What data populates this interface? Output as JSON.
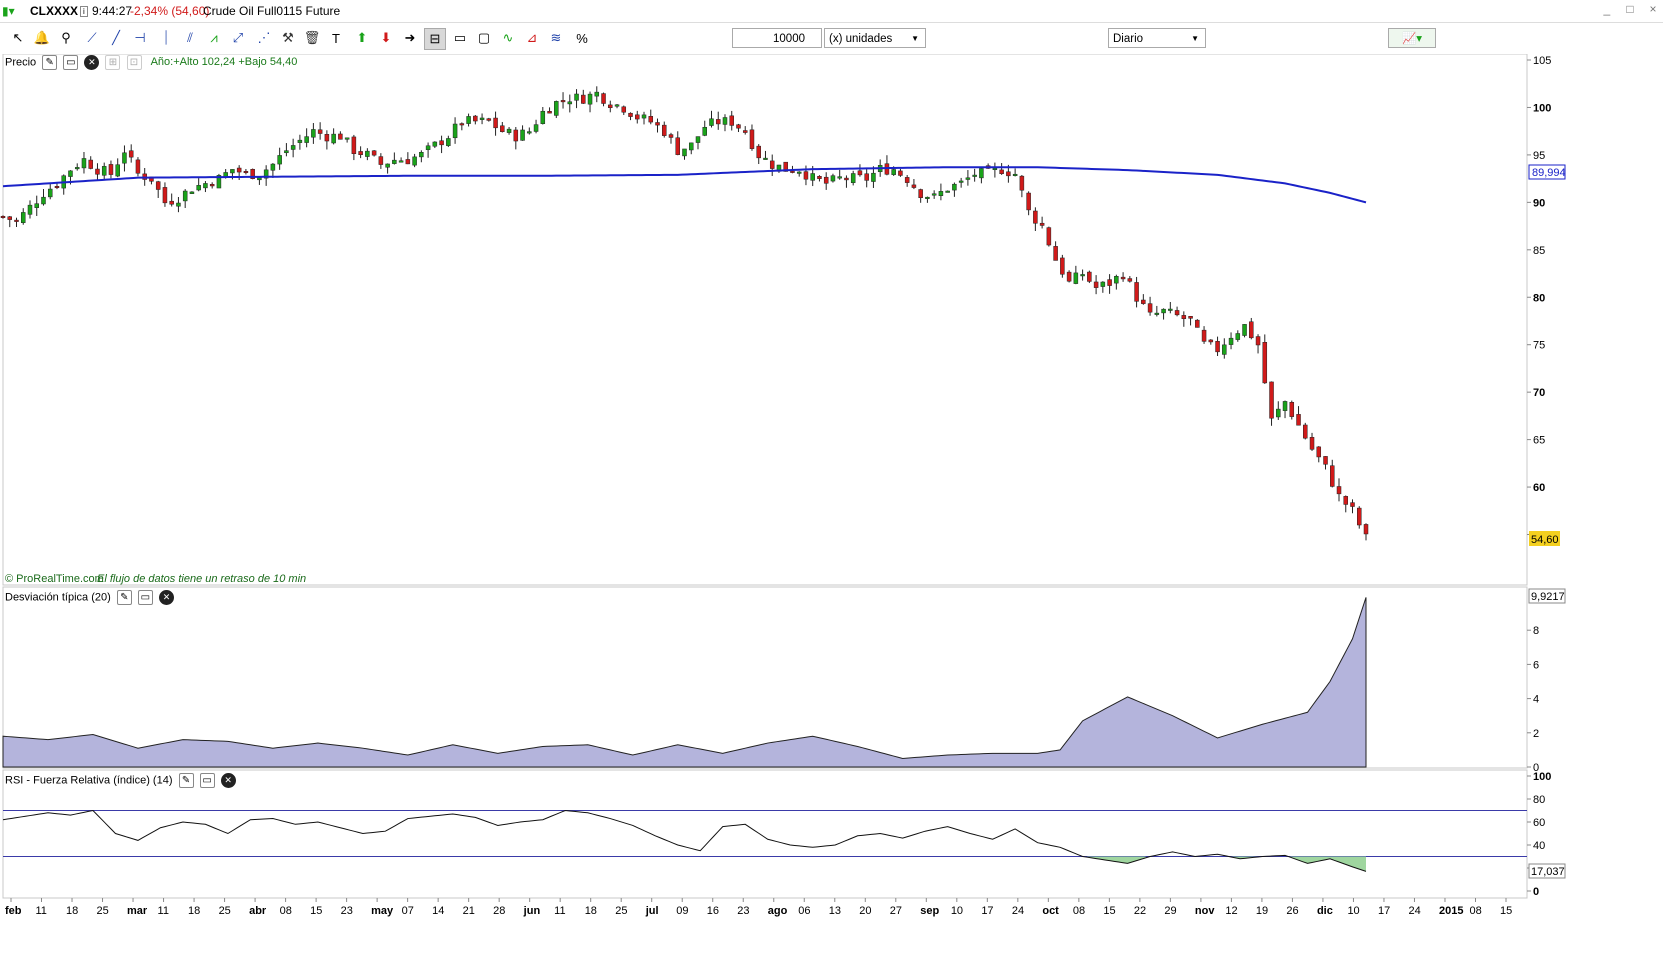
{
  "window": {
    "symbol": "CLXXXX",
    "time": "9:44:27",
    "change": "-2,34% (54,60)",
    "instrument": "Crude Oil Full0115 Future",
    "controls": [
      "_",
      "□",
      "×"
    ]
  },
  "toolbar": {
    "quantity": "10000",
    "units": "(x) unidades",
    "period": "Diario"
  },
  "price_panel": {
    "title": "Precio",
    "year_info": "Año:+Alto 102,24 +Bajo 54,40",
    "watermark": "© ProRealTime.com",
    "delay_note": "El flujo de datos tiene un retraso de 10 min",
    "last_value": "54,60",
    "ma_value": "89,994",
    "ma_color": "#1a22c8",
    "up_color": "#1aa31a",
    "down_color": "#d01a1a"
  },
  "std_panel": {
    "title": "Desviación típica (20)",
    "last_value": "9,9217",
    "fill_color": "#b4b4dc"
  },
  "rsi_panel": {
    "title": "RSI - Fuerza Relativa (índice) (14)",
    "last_value": "17,037",
    "upper_level": 70,
    "lower_level": 30
  },
  "chart_data": [
    {
      "type": "candlestick",
      "title": "Precio",
      "ylim": [
        50,
        106
      ],
      "y_ticks": [
        "105",
        "100",
        "95",
        "90",
        "85",
        "80",
        "75",
        "70",
        "65",
        "60",
        "55"
      ],
      "x_ticks": [
        "feb",
        "11",
        "18",
        "25",
        "mar",
        "11",
        "18",
        "25",
        "abr",
        "08",
        "15",
        "23",
        "may",
        "07",
        "14",
        "21",
        "28",
        "jun",
        "11",
        "18",
        "25",
        "jul",
        "09",
        "16",
        "23",
        "ago",
        "06",
        "13",
        "20",
        "27",
        "sep",
        "10",
        "17",
        "24",
        "oct",
        "08",
        "15",
        "22",
        "29",
        "nov",
        "12",
        "19",
        "26",
        "dic",
        "10",
        "17",
        "24",
        "2015",
        "08",
        "15"
      ],
      "close_path": [
        [
          0,
          88.5
        ],
        [
          6,
          88.0
        ],
        [
          12,
          89.5
        ],
        [
          18,
          91.0
        ],
        [
          24,
          92.0
        ],
        [
          30,
          93.5
        ],
        [
          36,
          94.5
        ],
        [
          42,
          93.5
        ],
        [
          48,
          93.0
        ],
        [
          54,
          95.5
        ],
        [
          60,
          93.0
        ],
        [
          66,
          92.5
        ],
        [
          72,
          90.0
        ],
        [
          78,
          90.5
        ],
        [
          84,
          91.5
        ],
        [
          90,
          92.0
        ],
        [
          96,
          92.5
        ],
        [
          102,
          93.5
        ],
        [
          108,
          93.0
        ],
        [
          114,
          93.0
        ],
        [
          120,
          94.0
        ],
        [
          126,
          95.5
        ],
        [
          132,
          96.5
        ],
        [
          138,
          97.5
        ],
        [
          144,
          97.0
        ],
        [
          150,
          97.0
        ],
        [
          156,
          95.5
        ],
        [
          162,
          95.0
        ],
        [
          168,
          94.0
        ],
        [
          174,
          94.5
        ],
        [
          180,
          94.5
        ],
        [
          186,
          95.0
        ],
        [
          192,
          96.0
        ],
        [
          198,
          97.0
        ],
        [
          204,
          98.5
        ],
        [
          210,
          98.5
        ],
        [
          216,
          98.5
        ],
        [
          222,
          97.5
        ],
        [
          228,
          97.0
        ],
        [
          234,
          97.5
        ],
        [
          240,
          99.5
        ],
        [
          246,
          100.5
        ],
        [
          252,
          101.0
        ],
        [
          258,
          101.0
        ],
        [
          264,
          101.5
        ],
        [
          270,
          100.5
        ],
        [
          276,
          100.0
        ],
        [
          282,
          99.0
        ],
        [
          288,
          98.5
        ],
        [
          294,
          97.5
        ],
        [
          300,
          95.5
        ],
        [
          306,
          96.0
        ],
        [
          312,
          98.0
        ],
        [
          318,
          98.5
        ],
        [
          324,
          98.5
        ],
        [
          330,
          97.5
        ],
        [
          336,
          95.0
        ],
        [
          342,
          94.0
        ],
        [
          348,
          93.5
        ],
        [
          354,
          93.5
        ],
        [
          360,
          92.5
        ],
        [
          366,
          92.0
        ],
        [
          372,
          92.5
        ],
        [
          378,
          92.5
        ],
        [
          384,
          92.5
        ],
        [
          390,
          93.5
        ],
        [
          396,
          93.5
        ],
        [
          402,
          92.5
        ],
        [
          408,
          91.0
        ],
        [
          414,
          90.5
        ],
        [
          420,
          91.5
        ],
        [
          426,
          92.0
        ],
        [
          432,
          93.0
        ],
        [
          438,
          93.0
        ],
        [
          444,
          93.5
        ],
        [
          450,
          93.0
        ],
        [
          456,
          89.0
        ],
        [
          462,
          87.5
        ],
        [
          468,
          84.0
        ],
        [
          474,
          81.5
        ],
        [
          480,
          82.5
        ],
        [
          486,
          81.0
        ],
        [
          492,
          81.5
        ],
        [
          498,
          82.5
        ],
        [
          504,
          80.0
        ],
        [
          510,
          78.0
        ],
        [
          516,
          78.5
        ],
        [
          522,
          78.0
        ],
        [
          528,
          77.5
        ],
        [
          534,
          75.0
        ],
        [
          540,
          74.5
        ],
        [
          546,
          76.0
        ],
        [
          552,
          77.0
        ],
        [
          558,
          75.0
        ],
        [
          564,
          67.0
        ],
        [
          570,
          69.0
        ],
        [
          576,
          66.5
        ],
        [
          582,
          64.0
        ],
        [
          588,
          62.0
        ],
        [
          594,
          59.0
        ],
        [
          600,
          57.5
        ],
        [
          606,
          54.6
        ]
      ],
      "ma50": [
        [
          0,
          91.7
        ],
        [
          60,
          92.6
        ],
        [
          120,
          92.7
        ],
        [
          180,
          92.8
        ],
        [
          240,
          92.8
        ],
        [
          300,
          92.9
        ],
        [
          360,
          93.5
        ],
        [
          420,
          93.7
        ],
        [
          460,
          93.7
        ],
        [
          500,
          93.4
        ],
        [
          540,
          92.9
        ],
        [
          570,
          92.0
        ],
        [
          590,
          91.0
        ],
        [
          606,
          90.0
        ]
      ]
    },
    {
      "type": "area",
      "title": "Desviación típica (20)",
      "ylim": [
        0,
        10
      ],
      "y_ticks": [
        "8",
        "6",
        "4",
        "2",
        "0"
      ],
      "values_path": [
        [
          0,
          1.8
        ],
        [
          20,
          1.6
        ],
        [
          40,
          1.9
        ],
        [
          60,
          1.1
        ],
        [
          80,
          1.6
        ],
        [
          100,
          1.5
        ],
        [
          120,
          1.1
        ],
        [
          140,
          1.4
        ],
        [
          160,
          1.1
        ],
        [
          180,
          0.7
        ],
        [
          200,
          1.3
        ],
        [
          220,
          0.8
        ],
        [
          240,
          1.2
        ],
        [
          260,
          1.3
        ],
        [
          280,
          0.7
        ],
        [
          300,
          1.3
        ],
        [
          320,
          0.8
        ],
        [
          340,
          1.4
        ],
        [
          360,
          1.8
        ],
        [
          380,
          1.2
        ],
        [
          400,
          0.5
        ],
        [
          420,
          0.7
        ],
        [
          440,
          0.8
        ],
        [
          460,
          0.8
        ],
        [
          470,
          1.0
        ],
        [
          480,
          2.7
        ],
        [
          500,
          4.1
        ],
        [
          520,
          3.0
        ],
        [
          540,
          1.7
        ],
        [
          560,
          2.5
        ],
        [
          580,
          3.2
        ],
        [
          590,
          5.0
        ],
        [
          600,
          7.5
        ],
        [
          606,
          9.92
        ]
      ]
    },
    {
      "type": "line",
      "title": "RSI - Fuerza Relativa (índice) (14)",
      "ylim": [
        0,
        100
      ],
      "y_ticks": [
        "100",
        "80",
        "60",
        "40",
        "20",
        "0"
      ],
      "values_path": [
        [
          0,
          62
        ],
        [
          10,
          65
        ],
        [
          20,
          68
        ],
        [
          30,
          66
        ],
        [
          40,
          70
        ],
        [
          50,
          50
        ],
        [
          60,
          44
        ],
        [
          70,
          55
        ],
        [
          80,
          60
        ],
        [
          90,
          58
        ],
        [
          100,
          50
        ],
        [
          110,
          62
        ],
        [
          120,
          63
        ],
        [
          130,
          58
        ],
        [
          140,
          60
        ],
        [
          150,
          55
        ],
        [
          160,
          50
        ],
        [
          170,
          52
        ],
        [
          180,
          63
        ],
        [
          190,
          65
        ],
        [
          200,
          67
        ],
        [
          210,
          64
        ],
        [
          220,
          57
        ],
        [
          230,
          60
        ],
        [
          240,
          62
        ],
        [
          250,
          70
        ],
        [
          260,
          68
        ],
        [
          270,
          63
        ],
        [
          280,
          57
        ],
        [
          290,
          48
        ],
        [
          300,
          40
        ],
        [
          310,
          35
        ],
        [
          320,
          56
        ],
        [
          330,
          58
        ],
        [
          340,
          45
        ],
        [
          350,
          40
        ],
        [
          360,
          38
        ],
        [
          370,
          40
        ],
        [
          380,
          48
        ],
        [
          390,
          50
        ],
        [
          400,
          46
        ],
        [
          410,
          52
        ],
        [
          420,
          56
        ],
        [
          430,
          50
        ],
        [
          440,
          45
        ],
        [
          450,
          54
        ],
        [
          460,
          42
        ],
        [
          470,
          38
        ],
        [
          480,
          30
        ],
        [
          490,
          27
        ],
        [
          500,
          24
        ],
        [
          510,
          30
        ],
        [
          520,
          34
        ],
        [
          530,
          30
        ],
        [
          540,
          32
        ],
        [
          550,
          28
        ],
        [
          560,
          30
        ],
        [
          570,
          31
        ],
        [
          580,
          24
        ],
        [
          590,
          28
        ],
        [
          600,
          21
        ],
        [
          606,
          17.04
        ]
      ]
    }
  ]
}
